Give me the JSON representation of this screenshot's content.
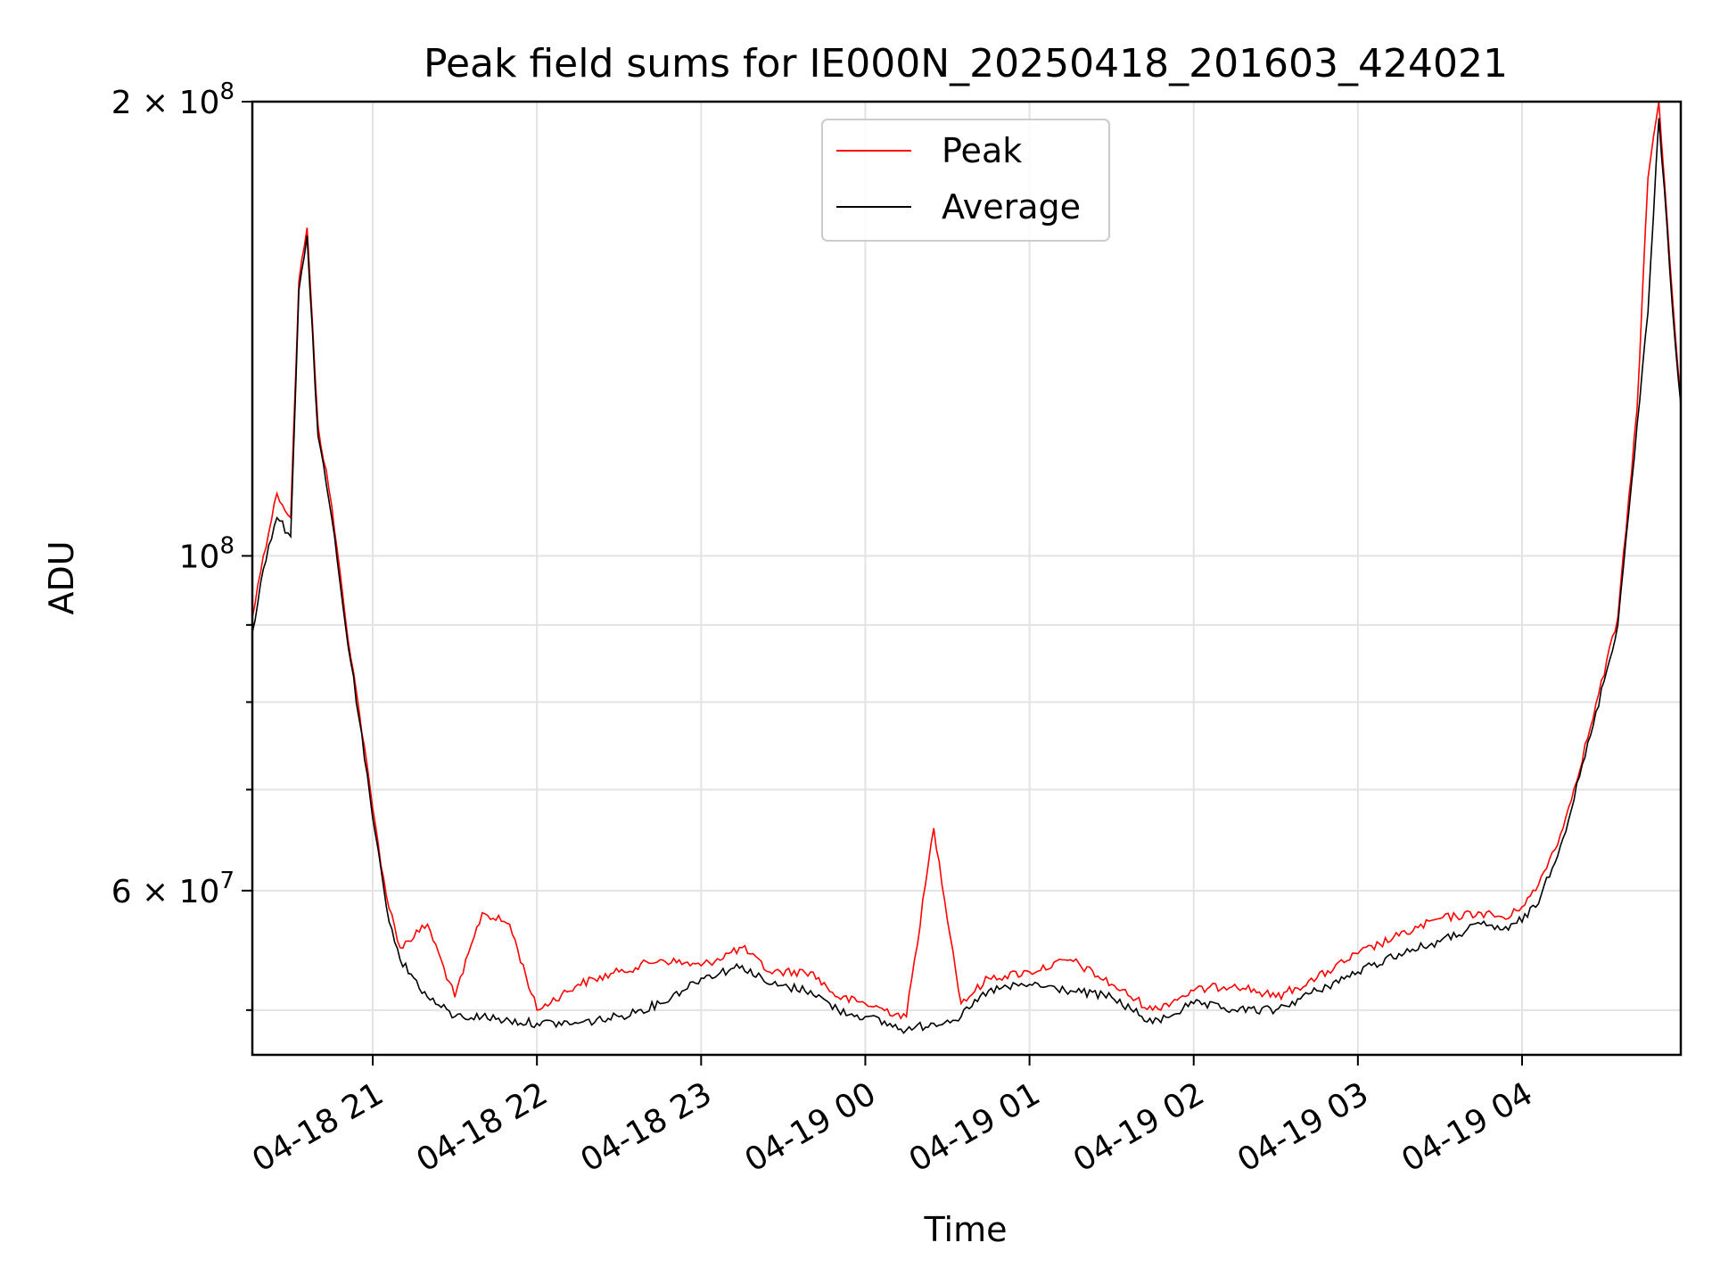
{
  "chart_data": {
    "type": "line",
    "title": "Peak field sums for IE000N_20250418_201603_424021",
    "xlabel": "Time",
    "ylabel": "ADU",
    "yscale": "log",
    "ylim": [
      46700000,
      200000000
    ],
    "xlim": [
      "2025-04-18 20:16",
      "2025-04-19 04:58"
    ],
    "grid": true,
    "legend_position": "upper center",
    "x_tick_labels": [
      "04-18 21",
      "04-18 22",
      "04-18 23",
      "04-19 00",
      "04-19 01",
      "04-19 02",
      "04-19 03",
      "04-19 04"
    ],
    "y_tick_labels": [
      {
        "value": 200000000,
        "mantissa": "2",
        "exponent": "8"
      },
      {
        "value": 100000000,
        "mantissa": "",
        "exponent": "8"
      },
      {
        "value": 60000000,
        "mantissa": "6",
        "exponent": "7"
      }
    ],
    "y_minor_ticks": [
      50000000,
      70000000,
      80000000,
      90000000
    ],
    "series": [
      {
        "name": "Peak",
        "color": "#ff0000"
      },
      {
        "name": "Average",
        "color": "#000000"
      }
    ],
    "x": [
      "2025-04-18 20:16",
      "2025-04-18 20:20",
      "2025-04-18 20:25",
      "2025-04-18 20:30",
      "2025-04-18 20:33",
      "2025-04-18 20:36",
      "2025-04-18 20:40",
      "2025-04-18 20:45",
      "2025-04-18 20:50",
      "2025-04-18 20:55",
      "2025-04-18 21:00",
      "2025-04-18 21:05",
      "2025-04-18 21:10",
      "2025-04-18 21:20",
      "2025-04-18 21:30",
      "2025-04-18 21:40",
      "2025-04-18 21:50",
      "2025-04-18 22:00",
      "2025-04-18 22:15",
      "2025-04-18 22:30",
      "2025-04-18 22:45",
      "2025-04-18 23:00",
      "2025-04-18 23:15",
      "2025-04-18 23:25",
      "2025-04-18 23:40",
      "2025-04-18 23:50",
      "2025-04-19 00:00",
      "2025-04-19 00:15",
      "2025-04-19 00:25",
      "2025-04-19 00:35",
      "2025-04-19 00:45",
      "2025-04-19 01:00",
      "2025-04-19 01:15",
      "2025-04-19 01:30",
      "2025-04-19 01:45",
      "2025-04-19 02:00",
      "2025-04-19 02:15",
      "2025-04-19 02:30",
      "2025-04-19 02:45",
      "2025-04-19 03:00",
      "2025-04-19 03:15",
      "2025-04-19 03:30",
      "2025-04-19 03:45",
      "2025-04-19 03:55",
      "2025-04-19 04:05",
      "2025-04-19 04:15",
      "2025-04-19 04:25",
      "2025-04-19 04:35",
      "2025-04-19 04:42",
      "2025-04-19 04:46",
      "2025-04-19 04:50",
      "2025-04-19 04:53",
      "2025-04-19 04:56",
      "2025-04-19 04:58"
    ],
    "average": [
      89000000,
      98000000,
      106000000,
      103000000,
      150000000,
      163000000,
      120000000,
      106000000,
      90000000,
      78000000,
      67000000,
      58500000,
      54000000,
      51000000,
      49500000,
      49500000,
      49200000,
      49000000,
      49000000,
      49500000,
      50500000,
      52500000,
      53500000,
      52000000,
      51500000,
      50000000,
      49500000,
      48500000,
      49000000,
      49500000,
      51500000,
      52000000,
      51500000,
      51000000,
      49000000,
      50500000,
      50000000,
      50000000,
      51500000,
      53000000,
      54500000,
      55500000,
      57000000,
      56500000,
      58500000,
      65000000,
      76000000,
      90000000,
      122000000,
      145000000,
      195000000,
      165000000,
      138000000,
      126000000
    ],
    "peak": [
      91000000,
      100000000,
      110000000,
      106000000,
      152000000,
      165000000,
      122000000,
      108000000,
      91000000,
      79000000,
      68000000,
      59500000,
      55000000,
      57000000,
      51000000,
      58000000,
      57000000,
      50000000,
      52000000,
      53000000,
      54000000,
      53500000,
      55000000,
      53000000,
      53000000,
      51000000,
      50500000,
      49500000,
      66000000,
      50500000,
      52500000,
      53000000,
      54000000,
      52000000,
      50000000,
      51500000,
      52000000,
      51000000,
      52500000,
      54500000,
      56000000,
      57500000,
      58000000,
      57500000,
      60000000,
      66000000,
      77000000,
      91000000,
      125000000,
      178000000,
      200000000,
      167000000,
      140000000,
      127000000
    ]
  }
}
